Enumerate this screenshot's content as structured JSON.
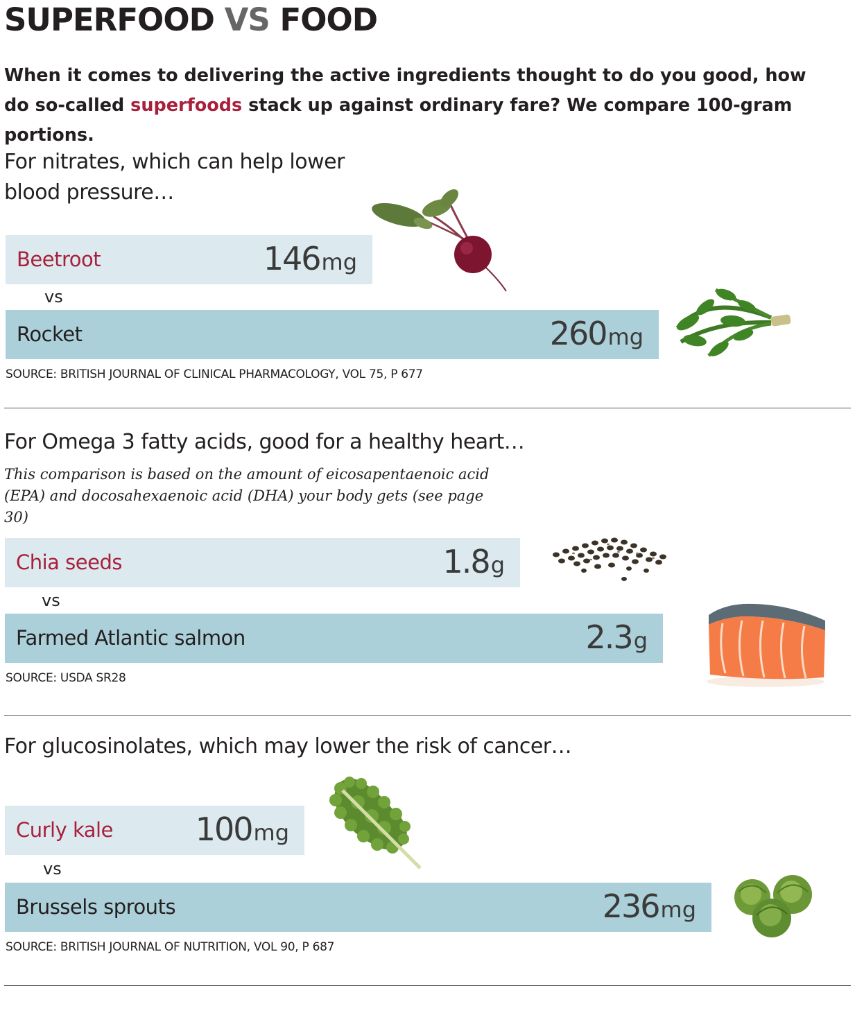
{
  "title": {
    "part1": "SUPERFOOD",
    "vs": "VS",
    "part2": "FOOD"
  },
  "intro": {
    "before": "When it comes to delivering the active ingredients thought to do you good, how do so-called ",
    "highlight": "superfoods",
    "after": " stack up against ordinary fare? We compare 100-gram portions."
  },
  "colors": {
    "superfood_bar": "#dceaef",
    "food_bar": "#acd0d9",
    "superfood_text": "#a8203c",
    "divider": "#555555"
  },
  "chart_data": [
    {
      "type": "bar",
      "heading": "For nitrates, which can help lower blood pressure…",
      "vs_label": "vs",
      "source": "SOURCE: BRITISH JOURNAL OF CLINICAL PHARMACOLOGY, VOL 75, P 677",
      "unit": "mg",
      "categories": [
        "Beetroot",
        "Rocket"
      ],
      "values": [
        146,
        260
      ],
      "value_labels": [
        "146",
        "260"
      ],
      "icons": [
        "beetroot-icon",
        "rocket-icon"
      ]
    },
    {
      "type": "bar",
      "heading": "For Omega 3 fatty acids, good for a healthy heart…",
      "note": "This comparison is based on the amount of eicosapentaenoic acid (EPA) and docosahexaenoic acid (DHA) your body gets (see page 30)",
      "vs_label": "vs",
      "source": "SOURCE: USDA SR28",
      "unit": "g",
      "categories": [
        "Chia seeds",
        "Farmed Atlantic salmon"
      ],
      "values": [
        1.8,
        2.3
      ],
      "value_labels": [
        "1.8",
        "2.3"
      ],
      "icons": [
        "chia-seeds-icon",
        "salmon-icon"
      ]
    },
    {
      "type": "bar",
      "heading": "For glucosinolates, which may lower the risk of cancer…",
      "vs_label": "vs",
      "source": "SOURCE: BRITISH JOURNAL OF NUTRITION, VOL 90, P 687",
      "unit": "mg",
      "categories": [
        "Curly kale",
        "Brussels sprouts"
      ],
      "values": [
        100,
        236
      ],
      "value_labels": [
        "100",
        "236"
      ],
      "icons": [
        "kale-icon",
        "brussels-sprouts-icon"
      ]
    }
  ]
}
